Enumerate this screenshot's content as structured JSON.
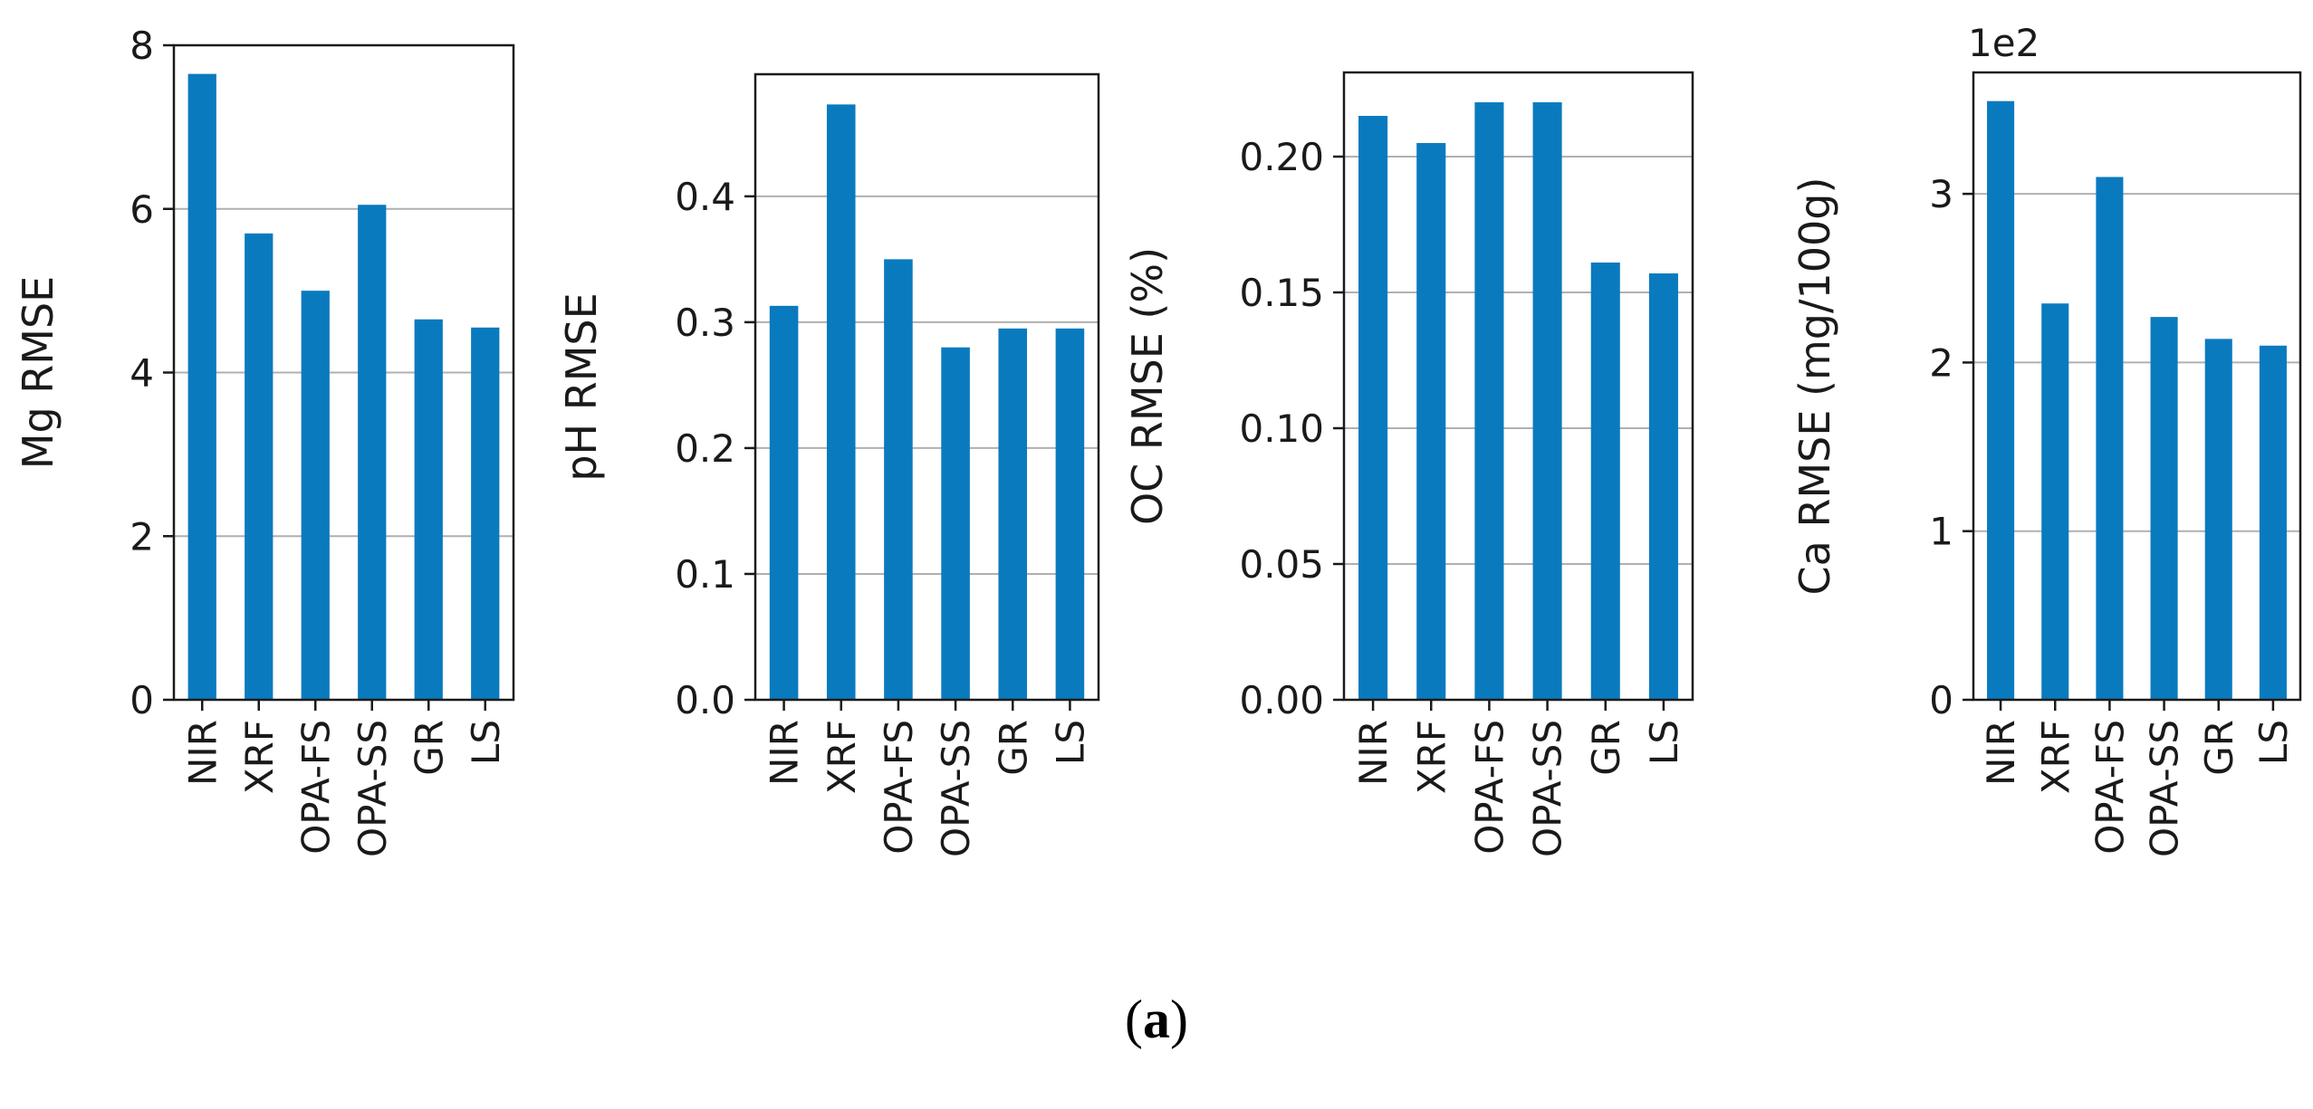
{
  "chart_data": [
    {
      "type": "bar",
      "categories": [
        "NIR",
        "XRF",
        "OPA-FS",
        "OPA-SS",
        "GR",
        "LS"
      ],
      "values": [
        7.65,
        5.7,
        5.0,
        6.05,
        4.65,
        4.55
      ],
      "title": "",
      "xlabel": "",
      "ylabel": "Mg RMSE",
      "ylim": [
        0,
        8.0
      ],
      "yticks": [
        "0",
        "2",
        "4",
        "6",
        "8"
      ],
      "ytick_values": [
        0,
        2,
        4,
        6,
        8
      ],
      "offset_label": "",
      "grid": "horizontal",
      "color": "#0a7abf"
    },
    {
      "type": "bar",
      "categories": [
        "NIR",
        "XRF",
        "OPA-FS",
        "OPA-SS",
        "GR",
        "LS"
      ],
      "values": [
        0.313,
        0.473,
        0.35,
        0.28,
        0.295,
        0.295
      ],
      "title": "",
      "xlabel": "",
      "ylabel": "pH RMSE",
      "ylim": [
        0,
        0.497
      ],
      "yticks": [
        "0.0",
        "0.1",
        "0.2",
        "0.3",
        "0.4"
      ],
      "ytick_values": [
        0,
        0.1,
        0.2,
        0.3,
        0.4
      ],
      "offset_label": "",
      "grid": "horizontal",
      "color": "#0a7abf"
    },
    {
      "type": "bar",
      "categories": [
        "NIR",
        "XRF",
        "OPA-FS",
        "OPA-SS",
        "GR",
        "LS"
      ],
      "values": [
        0.215,
        0.205,
        0.22,
        0.22,
        0.161,
        0.157
      ],
      "title": "",
      "xlabel": "",
      "ylabel": "OC RMSE (%)",
      "ylim": [
        0,
        0.231
      ],
      "yticks": [
        "0.00",
        "0.05",
        "0.10",
        "0.15",
        "0.20"
      ],
      "ytick_values": [
        0,
        0.05,
        0.1,
        0.15,
        0.2
      ],
      "offset_label": "",
      "grid": "horizontal",
      "color": "#0a7abf"
    },
    {
      "type": "bar",
      "categories": [
        "NIR",
        "XRF",
        "OPA-FS",
        "OPA-SS",
        "GR",
        "LS"
      ],
      "values": [
        3.55,
        2.35,
        3.1,
        2.27,
        2.14,
        2.1
      ],
      "title": "",
      "xlabel": "",
      "ylabel": "Ca RMSE (mg/100g)",
      "ylim": [
        0,
        3.72
      ],
      "yticks": [
        "0",
        "1",
        "2",
        "3"
      ],
      "ytick_values": [
        0,
        1,
        2,
        3
      ],
      "offset_label": "1e2",
      "grid": "horizontal",
      "color": "#0a7abf"
    }
  ],
  "caption": {
    "open": "(",
    "label": "a",
    "close": ")"
  }
}
